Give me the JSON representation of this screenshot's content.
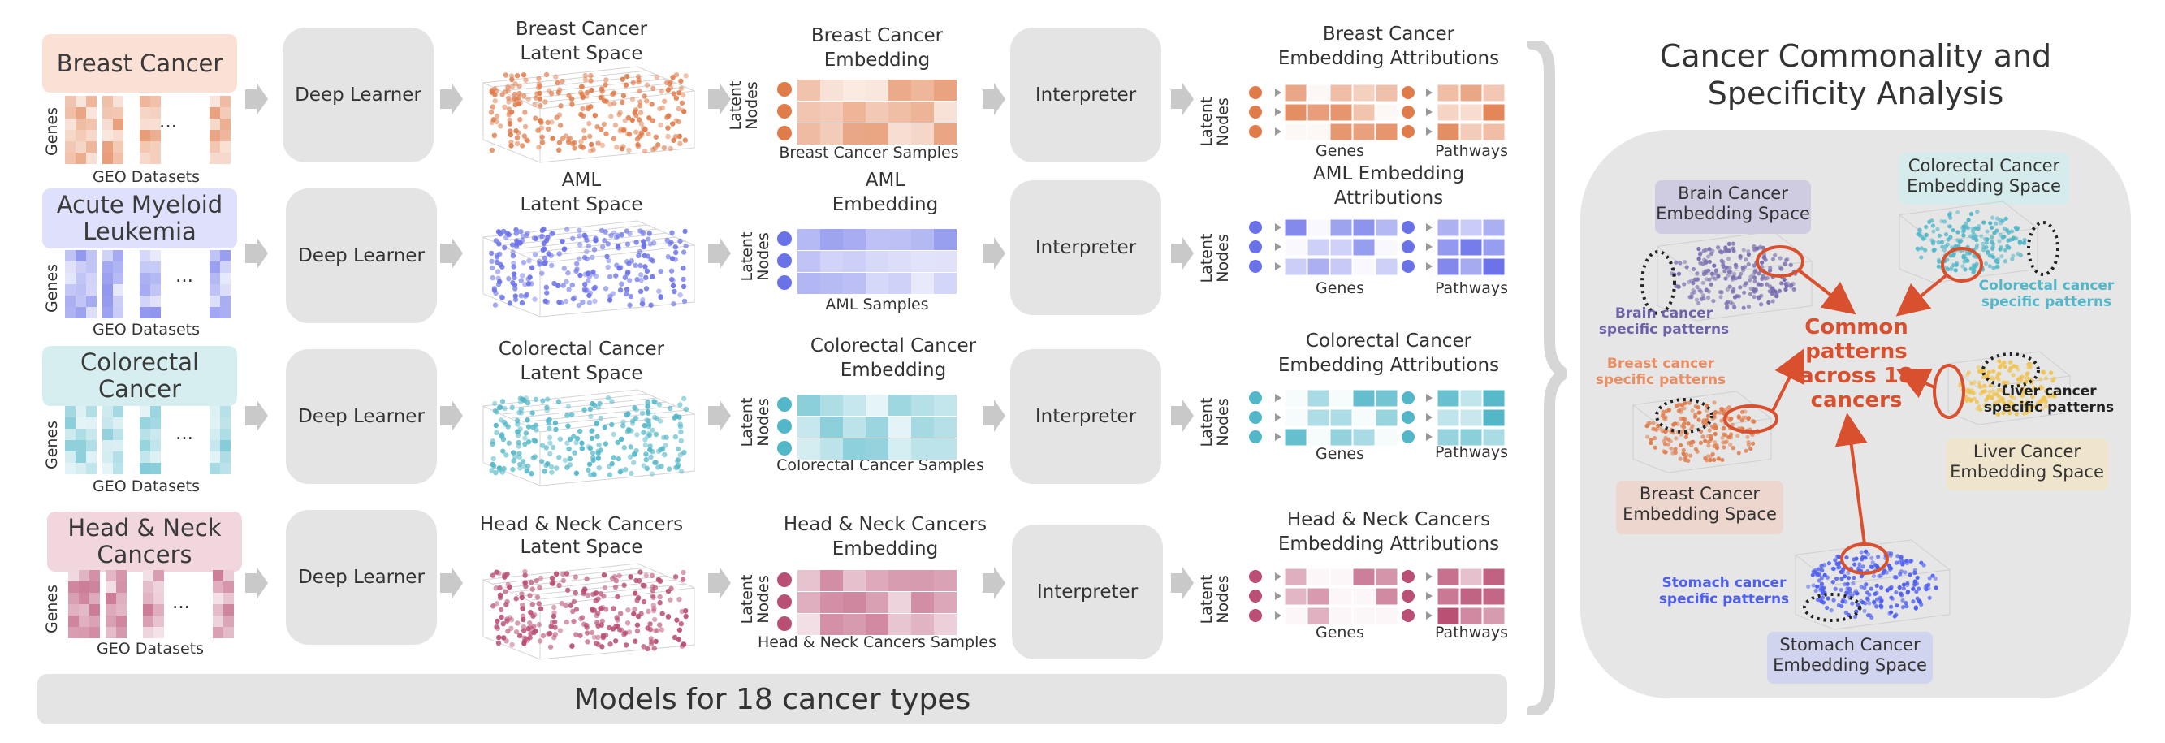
{
  "rows": [
    {
      "key": "breast",
      "title": "Breast Cancer",
      "title_bg": "#fbe0d6",
      "color": "#e07b4a",
      "light": "#f9dccb",
      "latent": "Breast Cancer\nLatent Space",
      "latent_l1": "Breast Cancer",
      "latent_l2": "Latent Space",
      "embed_l1": "Breast Cancer",
      "embed_l2": "Embedding",
      "samples": "Breast Cancer Samples",
      "attr_l1": "Breast Cancer",
      "attr_l2": "Embedding Attributions"
    },
    {
      "key": "aml",
      "title": "Acute Myeloid Leukemia",
      "title_l1": "Acute Myeloid",
      "title_l2": "Leukemia",
      "title_bg": "#dfe0fb",
      "color": "#6a72e8",
      "light": "#dcdffb",
      "latent_l1": "AML",
      "latent_l2": "Latent Space",
      "embed_l1": "AML",
      "embed_l2": "Embedding",
      "samples": "AML Samples",
      "attr_l1": "AML Embedding",
      "attr_l2": "Attributions"
    },
    {
      "key": "colorectal",
      "title_l1": "Colorectal",
      "title_l2": "Cancer",
      "title_bg": "#d7eef1",
      "color": "#52b7c8",
      "light": "#d4eef2",
      "latent_l1": "Colorectal Cancer",
      "latent_l2": "Latent Space",
      "embed_l1": "Colorectal Cancer",
      "embed_l2": "Embedding",
      "samples": "Colorectal Cancer Samples",
      "attr_l1": "Colorectal Cancer",
      "attr_l2": "Embedding Attributions"
    },
    {
      "key": "headneck",
      "title_l1": "Head & Neck",
      "title_l2": "Cancers",
      "title_bg": "#f1d6de",
      "color": "#b94f73",
      "light": "#f2d9e1",
      "latent_l1": "Head & Neck Cancers",
      "latent_l2": "Latent Space",
      "embed_l1": "Head & Neck Cancers",
      "embed_l2": "Embedding",
      "samples": "Head & Neck Cancers Samples",
      "attr_l1": "Head & Neck Cancers",
      "attr_l2": "Embedding Attributions"
    }
  ],
  "labels": {
    "breast_title": "Breast Cancer",
    "aml_title_l1": "Acute Myeloid",
    "aml_title_l2": "Leukemia",
    "crc_title_l1": "Colorectal",
    "crc_title_l2": "Cancer",
    "hn_title_l1": "Head & Neck",
    "hn_title_l2": "Cancers",
    "genes": "Genes",
    "geo": "GEO Datasets",
    "ellipsis": "...",
    "deep_learner": "Deep Learner",
    "interpreter": "Interpreter",
    "latent": "Latent",
    "nodes": "Nodes",
    "pathways": "Pathways",
    "breast_latent_l1": "Breast Cancer",
    "breast_latent_l2": "Latent Space",
    "aml_latent_l1": "AML",
    "aml_latent_l2": "Latent Space",
    "crc_latent_l1": "Colorectal Cancer",
    "crc_latent_l2": "Latent Space",
    "hn_latent_l1": "Head & Neck Cancers",
    "hn_latent_l2": "Latent Space",
    "breast_embed_l1": "Breast Cancer",
    "breast_embed_l2": "Embedding",
    "breast_samples": "Breast Cancer Samples",
    "aml_embed_l1": "AML",
    "aml_embed_l2": "Embedding",
    "aml_samples": "AML Samples",
    "crc_embed_l1": "Colorectal Cancer",
    "crc_embed_l2": "Embedding",
    "crc_samples": "Colorectal Cancer Samples",
    "hn_embed_l1": "Head & Neck Cancers",
    "hn_embed_l2": "Embedding",
    "hn_samples": "Head & Neck Cancers Samples",
    "breast_attr_l1": "Breast Cancer",
    "breast_attr_l2": "Embedding Attributions",
    "aml_attr_l1": "AML Embedding",
    "aml_attr_l2": "Attributions",
    "crc_attr_l1": "Colorectal Cancer",
    "crc_attr_l2": "Embedding Attributions",
    "hn_attr_l1": "Head & Neck Cancers",
    "hn_attr_l2": "Embedding Attributions",
    "models_banner": "Models for 18 cancer types"
  },
  "analysis": {
    "title_l1": "Cancer Commonality and",
    "title_l2": "Specificity Analysis",
    "brain_space_l1": "Brain Cancer",
    "brain_space_l2": "Embedding Space",
    "colorectal_space_l1": "Colorectal Cancer",
    "colorectal_space_l2": "Embedding Space",
    "liver_space_l1": "Liver Cancer",
    "liver_space_l2": "Embedding Space",
    "breast_space_l1": "Breast Cancer",
    "breast_space_l2": "Embedding Space",
    "stomach_space_l1": "Stomach Cancer",
    "stomach_space_l2": "Embedding Space",
    "brain_spec_l1": "Brain cancer",
    "brain_spec_l2": "specific patterns",
    "colorectal_spec_l1": "Colorectal cancer",
    "colorectal_spec_l2": "specific patterns",
    "breast_spec_l1": "Breast cancer",
    "breast_spec_l2": "specific patterns",
    "liver_spec_l1": "Liver cancer",
    "liver_spec_l2": "specific patterns",
    "stomach_spec_l1": "Stomach cancer",
    "stomach_spec_l2": "specific patterns",
    "common_l1": "Common",
    "common_l2": "patterns",
    "common_l3": "across 18",
    "common_l4": "cancers"
  },
  "colors": {
    "breast": "#e07b4a",
    "aml": "#6a72e8",
    "colorectal": "#52b7c8",
    "headneck": "#b94f73",
    "brain": "#7a6fb0",
    "liver": "#f0c350",
    "stomach": "#4e5ef0",
    "common": "#d9502e"
  }
}
